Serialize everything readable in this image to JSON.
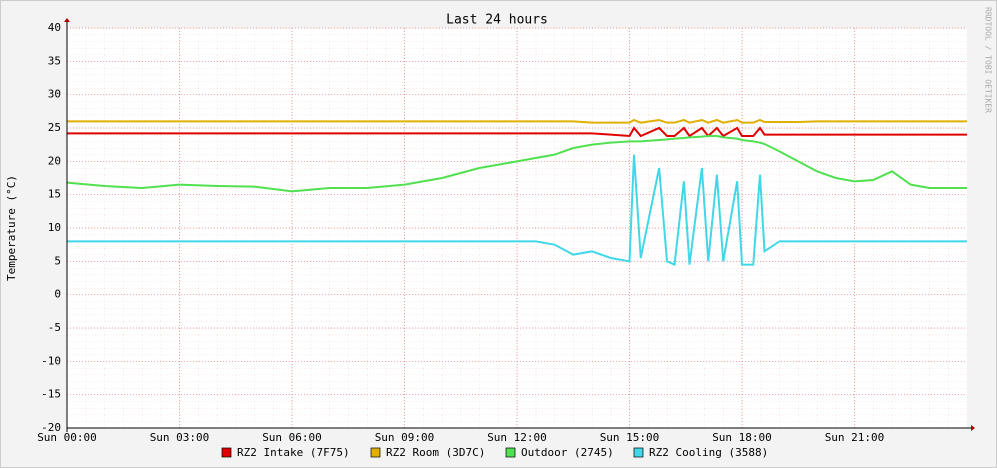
{
  "chart_data": {
    "type": "line",
    "title": "Last 24 hours",
    "y_label": "Temperature (°C)",
    "watermark": "RRDTOOL / TOBI OETIKER",
    "x": [
      0,
      1,
      2,
      3,
      4,
      5,
      6,
      7,
      8,
      9,
      10,
      11,
      12,
      12.5,
      13,
      13.5,
      14,
      14.5,
      15,
      15.12,
      15.3,
      15.79,
      16,
      16.2,
      16.45,
      16.6,
      16.93,
      17.1,
      17.33,
      17.5,
      17.87,
      18,
      18.3,
      18.48,
      18.6,
      19,
      19.5,
      20,
      20.5,
      21,
      21.5,
      22,
      22.5,
      23,
      24
    ],
    "xlim": [
      0,
      24
    ],
    "xticks": [
      {
        "value": 0,
        "label": "Sun 00:00"
      },
      {
        "value": 3,
        "label": "Sun 03:00"
      },
      {
        "value": 6,
        "label": "Sun 06:00"
      },
      {
        "value": 9,
        "label": "Sun 09:00"
      },
      {
        "value": 12,
        "label": "Sun 12:00"
      },
      {
        "value": 15,
        "label": "Sun 15:00"
      },
      {
        "value": 18,
        "label": "Sun 18:00"
      },
      {
        "value": 21,
        "label": "Sun 21:00"
      }
    ],
    "ylim": [
      -20,
      40
    ],
    "yticks": [
      -20,
      -15,
      -10,
      -5,
      0,
      5,
      10,
      15,
      20,
      25,
      30,
      35,
      40
    ],
    "grid": true,
    "series": [
      {
        "name": "RZ2 Intake (7F75)",
        "color": "#e00000",
        "values": [
          24.2,
          24.2,
          24.2,
          24.2,
          24.2,
          24.2,
          24.2,
          24.2,
          24.2,
          24.2,
          24.2,
          24.2,
          24.2,
          24.2,
          24.2,
          24.2,
          24.2,
          24,
          23.8,
          25,
          23.8,
          25,
          23.8,
          23.8,
          25,
          23.8,
          25,
          23.8,
          25,
          23.8,
          25,
          23.8,
          23.8,
          25,
          24,
          24,
          24,
          24,
          24,
          24,
          24,
          24,
          24,
          24,
          24
        ]
      },
      {
        "name": "RZ2 Room (3D7C)",
        "color": "#e0b000",
        "values": [
          26,
          26,
          26,
          26,
          26,
          26,
          26,
          26,
          26,
          26,
          26,
          26,
          26,
          26,
          26,
          26,
          25.8,
          25.8,
          25.8,
          26.2,
          25.8,
          26.2,
          25.8,
          25.8,
          26.2,
          25.8,
          26.2,
          25.8,
          26.2,
          25.8,
          26.2,
          25.8,
          25.8,
          26.2,
          25.9,
          25.9,
          25.9,
          26,
          26,
          26,
          26,
          26,
          26,
          26,
          26
        ]
      },
      {
        "name": "Outdoor (2745)",
        "color": "#50e050",
        "values": [
          16.8,
          16.3,
          16,
          16.5,
          16.3,
          16.2,
          15.5,
          16,
          16,
          16.5,
          17.5,
          19,
          20,
          20.5,
          21,
          22,
          22.5,
          22.8,
          23,
          23,
          23,
          23.2,
          23.3,
          23.4,
          23.5,
          23.6,
          23.7,
          23.8,
          23.8,
          23.6,
          23.4,
          23.2,
          23,
          22.8,
          22.6,
          21.5,
          20,
          18.5,
          17.5,
          17,
          17.2,
          18.5,
          16.5,
          16,
          16
        ]
      },
      {
        "name": "RZ2 Cooling (3588)",
        "color": "#40d8e8",
        "values": [
          8,
          8,
          8,
          8,
          8,
          8,
          8,
          8,
          8,
          8,
          8,
          8,
          8,
          8,
          7.5,
          6,
          6.5,
          5.5,
          5,
          21,
          5.5,
          19,
          5,
          4.5,
          17,
          4.5,
          19,
          5,
          18,
          5,
          17,
          4.5,
          4.5,
          18,
          6.5,
          8,
          8,
          8,
          8,
          8,
          8,
          8,
          8,
          8,
          8
        ]
      }
    ]
  }
}
